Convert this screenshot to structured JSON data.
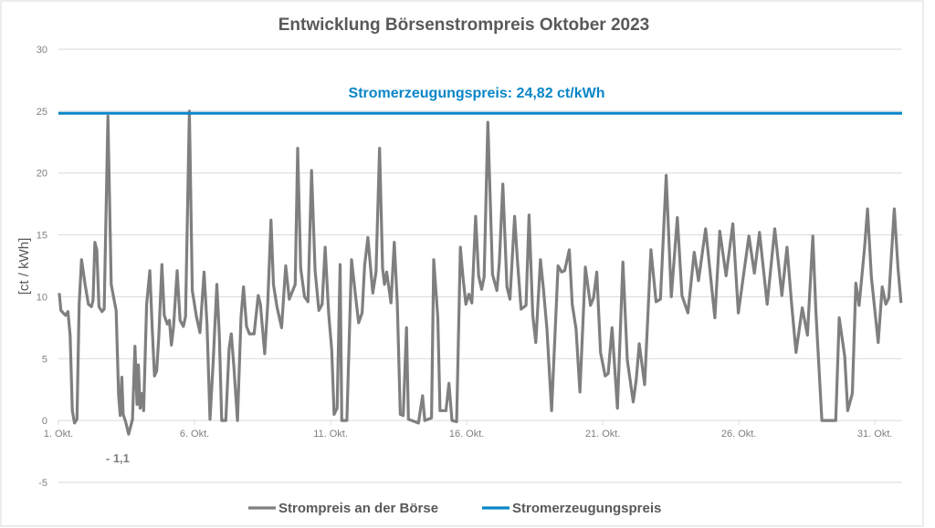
{
  "chart_data": {
    "type": "line",
    "title": "Entwicklung Börsenstrompreis Oktober 2023",
    "ylabel": "[ct / kWh]",
    "xlabel": "",
    "ylim": [
      -5,
      30
    ],
    "yticks": [
      -5,
      0,
      5,
      10,
      15,
      20,
      25,
      30
    ],
    "xlim_days": [
      0,
      31
    ],
    "xticks": [
      {
        "day": 0,
        "label": "1. Okt."
      },
      {
        "day": 5,
        "label": "6. Okt."
      },
      {
        "day": 10,
        "label": "11. Okt."
      },
      {
        "day": 15,
        "label": "16. Okt."
      },
      {
        "day": 20,
        "label": "21. Okt."
      },
      {
        "day": 25,
        "label": "26. Okt."
      },
      {
        "day": 30,
        "label": "31. Okt."
      }
    ],
    "grid": true,
    "legend_position": "bottom",
    "reference_line": {
      "name": "Stromerzeugungspreis",
      "value": 24.82,
      "label": "Stromerzeugungspreis: 24,82 ct/kWh",
      "color": "#0a86c8"
    },
    "annotation": {
      "label": "- 1,1",
      "day": 2.58,
      "value": -1.1
    },
    "series": [
      {
        "name": "Strompreis an der Börse",
        "color": "#7f7f7f",
        "points": [
          [
            0.03,
            10.3
          ],
          [
            0.09,
            8.9
          ],
          [
            0.26,
            8.5
          ],
          [
            0.35,
            8.8
          ],
          [
            0.43,
            6.9
          ],
          [
            0.51,
            0.8
          ],
          [
            0.59,
            -0.2
          ],
          [
            0.68,
            0.1
          ],
          [
            0.76,
            9.4
          ],
          [
            0.85,
            13
          ],
          [
            0.98,
            11
          ],
          [
            1.1,
            9.4
          ],
          [
            1.21,
            9.2
          ],
          [
            1.27,
            9.7
          ],
          [
            1.34,
            14.4
          ],
          [
            1.41,
            13.8
          ],
          [
            1.49,
            9.2
          ],
          [
            1.6,
            8.8
          ],
          [
            1.68,
            9
          ],
          [
            1.82,
            24.6
          ],
          [
            1.94,
            11
          ],
          [
            2.05,
            9.7
          ],
          [
            2.12,
            8.9
          ],
          [
            2.21,
            2
          ],
          [
            2.27,
            0.4
          ],
          [
            2.33,
            3.5
          ],
          [
            2.38,
            0.5
          ],
          [
            2.47,
            -0.1
          ],
          [
            2.58,
            -1.1
          ],
          [
            2.72,
            0.1
          ],
          [
            2.81,
            6
          ],
          [
            2.89,
            1.3
          ],
          [
            2.94,
            4.5
          ],
          [
            3.0,
            1
          ],
          [
            3.05,
            2.2
          ],
          [
            3.13,
            0.8
          ],
          [
            3.24,
            9.4
          ],
          [
            3.36,
            12.1
          ],
          [
            3.45,
            7.3
          ],
          [
            3.53,
            3.6
          ],
          [
            3.61,
            4
          ],
          [
            3.69,
            6.9
          ],
          [
            3.8,
            12.6
          ],
          [
            3.89,
            8.5
          ],
          [
            4.0,
            7.8
          ],
          [
            4.08,
            8.1
          ],
          [
            4.15,
            6.1
          ],
          [
            4.23,
            7.6
          ],
          [
            4.36,
            12.1
          ],
          [
            4.47,
            8.1
          ],
          [
            4.59,
            7.6
          ],
          [
            4.67,
            8.4
          ],
          [
            4.81,
            25
          ],
          [
            4.92,
            10.5
          ],
          [
            5.07,
            8.4
          ],
          [
            5.2,
            7.1
          ],
          [
            5.35,
            12
          ],
          [
            5.46,
            7.8
          ],
          [
            5.57,
            0.1
          ],
          [
            5.68,
            4.5
          ],
          [
            5.82,
            11
          ],
          [
            5.91,
            6.9
          ],
          [
            6.0,
            0
          ],
          [
            6.15,
            0
          ],
          [
            6.27,
            5.8
          ],
          [
            6.35,
            7
          ],
          [
            6.44,
            4.5
          ],
          [
            6.58,
            0
          ],
          [
            6.71,
            8.4
          ],
          [
            6.8,
            10.8
          ],
          [
            6.91,
            7.6
          ],
          [
            7.02,
            7
          ],
          [
            7.19,
            7
          ],
          [
            7.34,
            10.1
          ],
          [
            7.42,
            9.4
          ],
          [
            7.49,
            7.6
          ],
          [
            7.58,
            5.4
          ],
          [
            7.69,
            9.4
          ],
          [
            7.81,
            16.2
          ],
          [
            7.9,
            11
          ],
          [
            8.03,
            9.2
          ],
          [
            8.2,
            7.5
          ],
          [
            8.35,
            12.5
          ],
          [
            8.48,
            9.8
          ],
          [
            8.7,
            11
          ],
          [
            8.79,
            22
          ],
          [
            8.9,
            12.3
          ],
          [
            9.04,
            10
          ],
          [
            9.17,
            9.6
          ],
          [
            9.3,
            20.2
          ],
          [
            9.43,
            12.1
          ],
          [
            9.57,
            8.9
          ],
          [
            9.69,
            9.4
          ],
          [
            9.8,
            14
          ],
          [
            9.93,
            8.6
          ],
          [
            10.04,
            5.7
          ],
          [
            10.13,
            0.5
          ],
          [
            10.24,
            1
          ],
          [
            10.35,
            12.6
          ],
          [
            10.41,
            0
          ],
          [
            10.6,
            0
          ],
          [
            10.77,
            13
          ],
          [
            10.92,
            10
          ],
          [
            11.03,
            7.9
          ],
          [
            11.16,
            8.7
          ],
          [
            11.25,
            12.5
          ],
          [
            11.37,
            14.8
          ],
          [
            11.55,
            10.3
          ],
          [
            11.67,
            12
          ],
          [
            11.8,
            22
          ],
          [
            11.91,
            12.3
          ],
          [
            11.98,
            11
          ],
          [
            12.06,
            12
          ],
          [
            12.22,
            9.5
          ],
          [
            12.34,
            14.4
          ],
          [
            12.45,
            9.5
          ],
          [
            12.56,
            0.5
          ],
          [
            12.67,
            0.4
          ],
          [
            12.79,
            7.5
          ],
          [
            12.86,
            0.1
          ],
          [
            13.23,
            -0.2
          ],
          [
            13.38,
            2
          ],
          [
            13.46,
            0
          ],
          [
            13.71,
            0.2
          ],
          [
            13.79,
            13
          ],
          [
            13.94,
            8.3
          ],
          [
            14.02,
            0.8
          ],
          [
            14.24,
            0.8
          ],
          [
            14.35,
            3
          ],
          [
            14.46,
            0
          ],
          [
            14.63,
            -0.1
          ],
          [
            14.77,
            14
          ],
          [
            14.86,
            11.7
          ],
          [
            14.97,
            9.4
          ],
          [
            15.08,
            10.2
          ],
          [
            15.19,
            9.5
          ],
          [
            15.33,
            16.5
          ],
          [
            15.44,
            11.7
          ],
          [
            15.55,
            10.6
          ],
          [
            15.64,
            11.6
          ],
          [
            15.78,
            24.1
          ],
          [
            15.95,
            11.8
          ],
          [
            16.11,
            10.5
          ],
          [
            16.2,
            12.8
          ],
          [
            16.33,
            19.1
          ],
          [
            16.48,
            10.8
          ],
          [
            16.59,
            9.8
          ],
          [
            16.76,
            16.5
          ],
          [
            16.87,
            12.8
          ],
          [
            17.0,
            9
          ],
          [
            17.18,
            9.3
          ],
          [
            17.29,
            16.6
          ],
          [
            17.43,
            8.5
          ],
          [
            17.54,
            6.3
          ],
          [
            17.71,
            13
          ],
          [
            17.82,
            10.6
          ],
          [
            17.95,
            7.4
          ],
          [
            18.12,
            0.8
          ],
          [
            18.36,
            12.5
          ],
          [
            18.49,
            12
          ],
          [
            18.6,
            12.1
          ],
          [
            18.77,
            13.8
          ],
          [
            18.88,
            9.4
          ],
          [
            19.02,
            7.4
          ],
          [
            19.16,
            2.3
          ],
          [
            19.36,
            12.4
          ],
          [
            19.55,
            9.3
          ],
          [
            19.66,
            9.9
          ],
          [
            19.78,
            12
          ],
          [
            19.92,
            5.5
          ],
          [
            20.09,
            3.6
          ],
          [
            20.2,
            3.8
          ],
          [
            20.34,
            7.5
          ],
          [
            20.54,
            1
          ],
          [
            20.74,
            12.8
          ],
          [
            20.9,
            4.9
          ],
          [
            21.12,
            1.5
          ],
          [
            21.23,
            3.3
          ],
          [
            21.34,
            6.2
          ],
          [
            21.54,
            2.9
          ],
          [
            21.77,
            13.8
          ],
          [
            21.96,
            9.6
          ],
          [
            22.12,
            9.8
          ],
          [
            22.33,
            19.8
          ],
          [
            22.52,
            10
          ],
          [
            22.74,
            16.4
          ],
          [
            22.91,
            10.1
          ],
          [
            23.13,
            8.7
          ],
          [
            23.36,
            13.6
          ],
          [
            23.52,
            11.3
          ],
          [
            23.78,
            15.5
          ],
          [
            24.12,
            8.3
          ],
          [
            24.3,
            15.3
          ],
          [
            24.53,
            11.7
          ],
          [
            24.78,
            15.9
          ],
          [
            24.98,
            8.7
          ],
          [
            25.37,
            14.9
          ],
          [
            25.57,
            11.9
          ],
          [
            25.76,
            15.2
          ],
          [
            26.04,
            9.4
          ],
          [
            26.32,
            15.5
          ],
          [
            26.58,
            10.1
          ],
          [
            26.77,
            14
          ],
          [
            26.94,
            9.4
          ],
          [
            27.1,
            5.5
          ],
          [
            27.33,
            9.1
          ],
          [
            27.52,
            6.9
          ],
          [
            27.72,
            14.9
          ],
          [
            27.83,
            8.9
          ],
          [
            28.05,
            0
          ],
          [
            28.56,
            0
          ],
          [
            28.69,
            8.3
          ],
          [
            28.89,
            5.2
          ],
          [
            29.0,
            0.8
          ],
          [
            29.17,
            2.2
          ],
          [
            29.3,
            11.1
          ],
          [
            29.42,
            9.3
          ],
          [
            29.62,
            14
          ],
          [
            29.73,
            17.1
          ],
          [
            29.87,
            11.6
          ],
          [
            30.12,
            6.3
          ],
          [
            30.27,
            10.8
          ],
          [
            30.4,
            9.4
          ],
          [
            30.51,
            9.9
          ],
          [
            30.71,
            17.1
          ],
          [
            30.85,
            12.3
          ],
          [
            30.96,
            9.5
          ]
        ]
      },
      {
        "name": "Stromerzeugungspreis",
        "color": "#0a86c8",
        "constant": 24.82
      }
    ]
  }
}
